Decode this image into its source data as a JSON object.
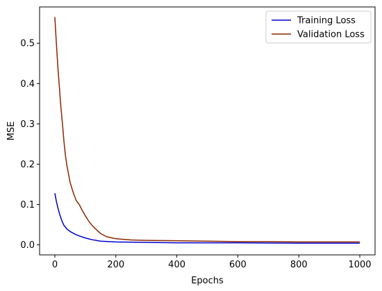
{
  "chart_data": {
    "type": "line",
    "xlabel": "Epochs",
    "ylabel": "MSE",
    "xlim": [
      -50,
      1050
    ],
    "ylim": [
      -0.025,
      0.59
    ],
    "xticks": [
      0,
      200,
      400,
      600,
      800,
      1000
    ],
    "yticks": [
      0.0,
      0.1,
      0.2,
      0.3,
      0.4,
      0.5
    ],
    "ytick_labels": [
      "0.0",
      "0.1",
      "0.2",
      "0.3",
      "0.4",
      "0.5"
    ],
    "grid": false,
    "legend_position": "top-right",
    "series": [
      {
        "name": "Training Loss",
        "color": "#0000cc",
        "x": [
          0,
          5,
          10,
          15,
          20,
          25,
          30,
          40,
          50,
          60,
          70,
          80,
          100,
          120,
          150,
          200,
          300,
          400,
          600,
          800,
          1000
        ],
        "y": [
          0.128,
          0.108,
          0.092,
          0.078,
          0.066,
          0.056,
          0.048,
          0.039,
          0.033,
          0.029,
          0.025,
          0.022,
          0.017,
          0.013,
          0.009,
          0.007,
          0.006,
          0.005,
          0.005,
          0.004,
          0.004
        ]
      },
      {
        "name": "Validation Loss",
        "color": "#8b2500",
        "x": [
          0,
          5,
          10,
          15,
          20,
          25,
          30,
          35,
          40,
          50,
          60,
          70,
          80,
          90,
          100,
          110,
          120,
          130,
          140,
          150,
          170,
          200,
          250,
          300,
          400,
          500,
          600,
          700,
          800,
          900,
          1000
        ],
        "y": [
          0.565,
          0.5,
          0.44,
          0.39,
          0.34,
          0.3,
          0.255,
          0.22,
          0.195,
          0.155,
          0.13,
          0.11,
          0.1,
          0.085,
          0.072,
          0.06,
          0.05,
          0.042,
          0.035,
          0.028,
          0.02,
          0.015,
          0.012,
          0.011,
          0.01,
          0.009,
          0.008,
          0.008,
          0.007,
          0.007,
          0.007
        ]
      }
    ]
  }
}
